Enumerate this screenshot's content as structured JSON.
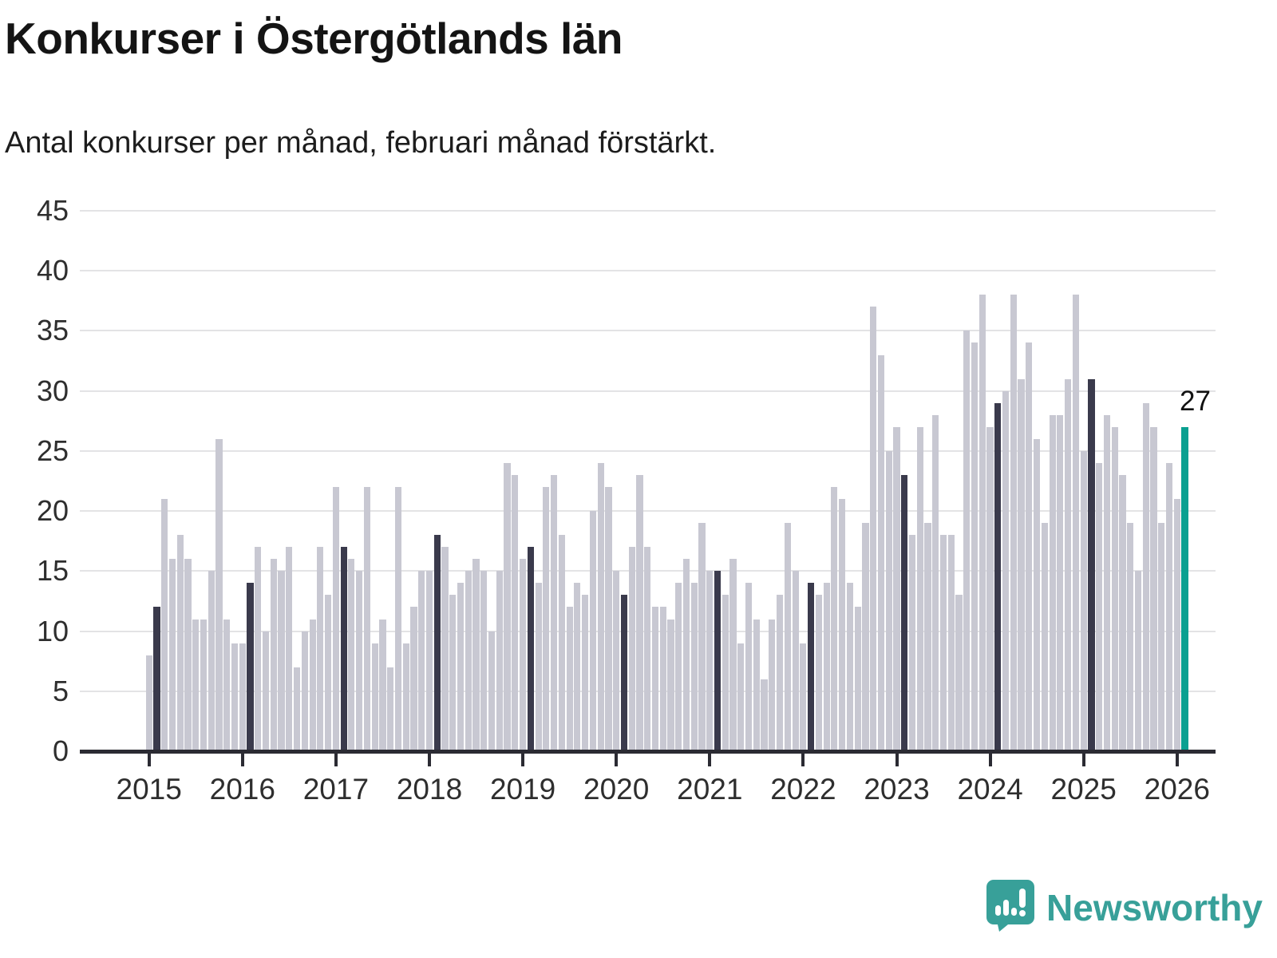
{
  "header": {
    "title": "Konkurser i Östergötlands län",
    "subtitle": "Antal konkurser per månad, februari månad förstärkt."
  },
  "chart_data": {
    "type": "bar",
    "title": "Konkurser i Östergötlands län",
    "subtitle": "Antal konkurser per månad, februari månad förstärkt.",
    "unit": "antal konkurser per månad",
    "ylim": [
      0,
      45
    ],
    "yticks": [
      0,
      5,
      10,
      15,
      20,
      25,
      30,
      35,
      40,
      45
    ],
    "grid": "horizontal",
    "highlighted_month": "februari",
    "series": [
      {
        "year": "2015",
        "values": [
          8,
          12,
          21,
          16,
          18,
          16,
          11,
          11,
          15,
          26,
          11,
          9
        ]
      },
      {
        "year": "2016",
        "values": [
          9,
          14,
          17,
          10,
          16,
          15,
          17,
          7,
          10,
          11,
          17,
          13
        ]
      },
      {
        "year": "2017",
        "values": [
          22,
          17,
          16,
          15,
          22,
          9,
          11,
          7,
          22,
          9,
          12,
          15
        ]
      },
      {
        "year": "2018",
        "values": [
          15,
          18,
          17,
          13,
          14,
          15,
          16,
          15,
          10,
          15,
          24,
          23
        ]
      },
      {
        "year": "2019",
        "values": [
          16,
          17,
          14,
          22,
          23,
          18,
          12,
          14,
          13,
          20,
          24,
          22
        ]
      },
      {
        "year": "2020",
        "values": [
          15,
          13,
          17,
          23,
          17,
          12,
          12,
          11,
          14,
          16,
          14,
          19
        ]
      },
      {
        "year": "2021",
        "values": [
          15,
          15,
          13,
          16,
          9,
          14,
          11,
          6,
          11,
          13,
          19,
          15
        ]
      },
      {
        "year": "2022",
        "values": [
          9,
          14,
          13,
          14,
          22,
          21,
          14,
          12,
          19,
          37,
          33,
          25
        ]
      },
      {
        "year": "2023",
        "values": [
          27,
          23,
          18,
          27,
          19,
          28,
          18,
          18,
          13,
          35,
          34,
          38
        ]
      },
      {
        "year": "2024",
        "values": [
          27,
          29,
          30,
          38,
          31,
          34,
          26,
          19,
          28,
          28,
          31,
          38
        ]
      },
      {
        "year": "2025",
        "values": [
          25,
          31,
          24,
          28,
          27,
          23,
          19,
          15,
          29,
          27,
          19,
          24
        ]
      },
      {
        "year": "2026",
        "values": [
          21,
          27
        ]
      }
    ],
    "annotation": {
      "text": "27",
      "target": "februari 2026"
    },
    "colors": {
      "bar": "#c8c8d2",
      "february_bar": "#3a3a4c",
      "latest_bar": "#0aa091",
      "gridline": "#e3e3e5",
      "axis": "#2b2b33"
    },
    "legend": "none"
  },
  "footer": {
    "brand": "Newsworthy",
    "brand_color": "#38a099"
  }
}
